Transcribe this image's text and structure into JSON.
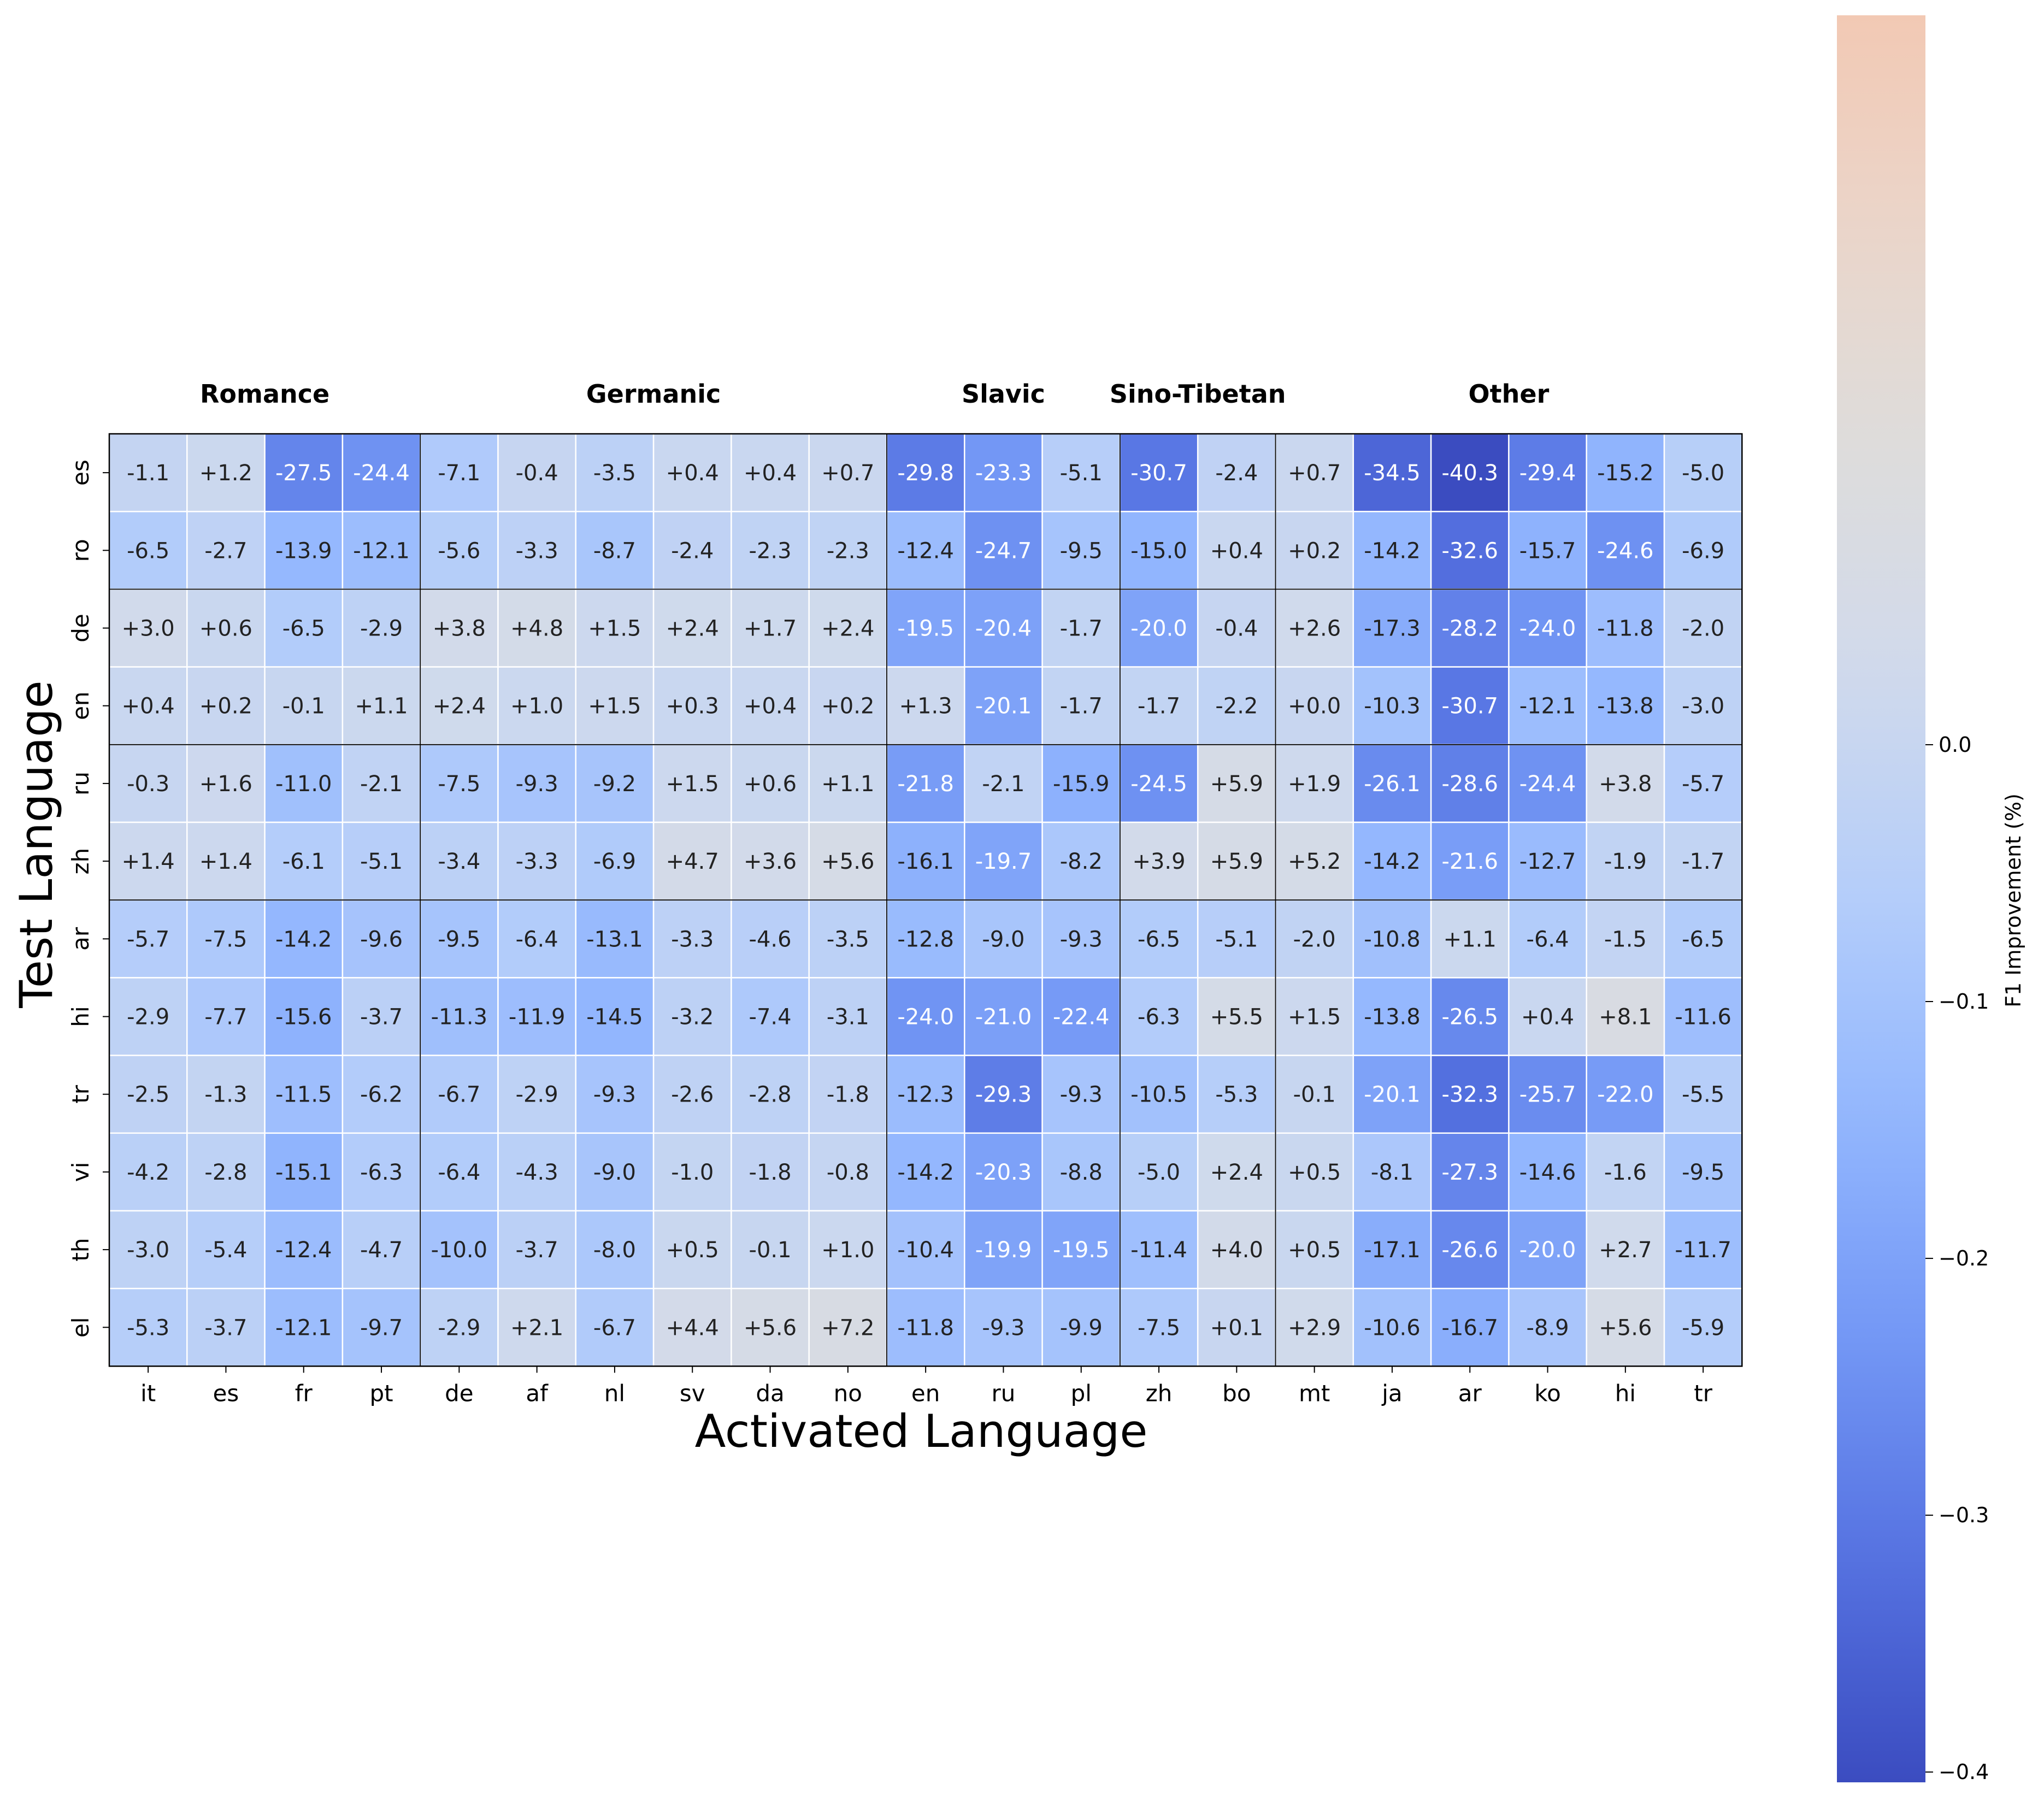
{
  "chart_data": {
    "type": "heatmap",
    "xlabel": "Activated Language",
    "ylabel": "Test Language",
    "x_categories": [
      "it",
      "es",
      "fr",
      "pt",
      "de",
      "af",
      "nl",
      "sv",
      "da",
      "no",
      "en",
      "ru",
      "pl",
      "zh",
      "bo",
      "mt",
      "ja",
      "ar",
      "ko",
      "hi",
      "tr"
    ],
    "y_categories": [
      "es",
      "ro",
      "de",
      "en",
      "ru",
      "zh",
      "ar",
      "hi",
      "tr",
      "vi",
      "th",
      "el"
    ],
    "groups": [
      {
        "name": "Romance",
        "start": 0,
        "end": 3
      },
      {
        "name": "Germanic",
        "start": 4,
        "end": 9
      },
      {
        "name": "Slavic",
        "start": 10,
        "end": 12
      },
      {
        "name": "Sino-Tibetan",
        "start": 13,
        "end": 14
      },
      {
        "name": "Other",
        "start": 15,
        "end": 20
      }
    ],
    "row_group_separators_after": [
      1,
      3,
      5
    ],
    "values": [
      [
        -1.1,
        1.2,
        -27.5,
        -24.4,
        -7.1,
        -0.4,
        -3.5,
        0.4,
        0.4,
        0.7,
        -29.8,
        -23.3,
        -5.1,
        -30.7,
        -2.4,
        0.7,
        -34.5,
        -40.3,
        -29.4,
        -15.2,
        -5.0
      ],
      [
        -6.5,
        -2.7,
        -13.9,
        -12.1,
        -5.6,
        -3.3,
        -8.7,
        -2.4,
        -2.3,
        -2.3,
        -12.4,
        -24.7,
        -9.5,
        -15.0,
        0.4,
        0.2,
        -14.2,
        -32.6,
        -15.7,
        -24.6,
        -6.9
      ],
      [
        3.0,
        0.6,
        -6.5,
        -2.9,
        3.8,
        4.8,
        1.5,
        2.4,
        1.7,
        2.4,
        -19.5,
        -20.4,
        -1.7,
        -20.0,
        -0.4,
        2.6,
        -17.3,
        -28.2,
        -24.0,
        -11.8,
        -2.0
      ],
      [
        0.4,
        0.2,
        -0.1,
        1.1,
        2.4,
        1.0,
        1.5,
        0.3,
        0.4,
        0.2,
        1.3,
        -20.1,
        -1.7,
        -1.7,
        -2.2,
        0.0,
        -10.3,
        -30.7,
        -12.1,
        -13.8,
        -3.0
      ],
      [
        -0.3,
        1.6,
        -11.0,
        -2.1,
        -7.5,
        -9.3,
        -9.2,
        1.5,
        0.6,
        1.1,
        -21.8,
        -2.1,
        -15.9,
        -24.5,
        5.9,
        1.9,
        -26.1,
        -28.6,
        -24.4,
        3.8,
        -5.7
      ],
      [
        1.4,
        1.4,
        -6.1,
        -5.1,
        -3.4,
        -3.3,
        -6.9,
        4.7,
        3.6,
        5.6,
        -16.1,
        -19.7,
        -8.2,
        3.9,
        5.9,
        5.2,
        -14.2,
        -21.6,
        -12.7,
        -1.9,
        -1.7
      ],
      [
        -5.7,
        -7.5,
        -14.2,
        -9.6,
        -9.5,
        -6.4,
        -13.1,
        -3.3,
        -4.6,
        -3.5,
        -12.8,
        -9.0,
        -9.3,
        -6.5,
        -5.1,
        -2.0,
        -10.8,
        1.1,
        -6.4,
        -1.5,
        -6.5
      ],
      [
        -2.9,
        -7.7,
        -15.6,
        -3.7,
        -11.3,
        -11.9,
        -14.5,
        -3.2,
        -7.4,
        -3.1,
        -24.0,
        -21.0,
        -22.4,
        -6.3,
        5.5,
        1.5,
        -13.8,
        -26.5,
        0.4,
        8.1,
        -11.6
      ],
      [
        -2.5,
        -1.3,
        -11.5,
        -6.2,
        -6.7,
        -2.9,
        -9.3,
        -2.6,
        -2.8,
        -1.8,
        -12.3,
        -29.3,
        -9.3,
        -10.5,
        -5.3,
        -0.1,
        -20.1,
        -32.3,
        -25.7,
        -22.0,
        -5.5
      ],
      [
        -4.2,
        -2.8,
        -15.1,
        -6.3,
        -6.4,
        -4.3,
        -9.0,
        -1.0,
        -1.8,
        -0.8,
        -14.2,
        -20.3,
        -8.8,
        -5.0,
        2.4,
        0.5,
        -8.1,
        -27.3,
        -14.6,
        -1.6,
        -9.5
      ],
      [
        -3.0,
        -5.4,
        -12.4,
        -4.7,
        -10.0,
        -3.7,
        -8.0,
        0.5,
        -0.1,
        1.0,
        -10.4,
        -19.9,
        -19.5,
        -11.4,
        4.0,
        0.5,
        -17.1,
        -26.6,
        -20.0,
        2.7,
        -11.7
      ],
      [
        -5.3,
        -3.7,
        -12.1,
        -9.7,
        -2.9,
        2.1,
        -6.7,
        4.4,
        5.6,
        7.2,
        -11.8,
        -9.3,
        -9.9,
        -7.5,
        0.1,
        2.9,
        -10.6,
        -16.7,
        -8.9,
        5.6,
        -5.9
      ]
    ],
    "color_scale": {
      "label": "F1 Improvement (%)",
      "range": [
        -0.404,
        0.284
      ],
      "ticks": [
        0.0,
        -0.1,
        -0.2,
        -0.3,
        -0.4
      ],
      "tick_labels": [
        "0.0",
        "−0.1",
        "−0.2",
        "−0.3",
        "−0.4"
      ],
      "colormap": "coolwarm",
      "low_color": "#3b4cc0",
      "mid_color": "#dddcdc",
      "high_color": "#f2c9b4"
    }
  }
}
